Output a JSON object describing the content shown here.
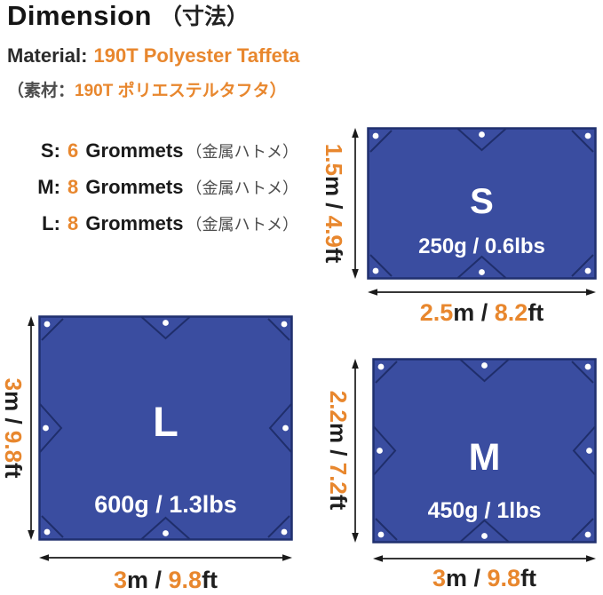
{
  "colors": {
    "orange": "#E8872E",
    "ink": "#1a1a1a",
    "gray": "#4d4d4d",
    "tarp_fill": "#3A4DA0",
    "tarp_border": "#20306F",
    "seam": "#1F2E6B",
    "grommet": "#ffffff"
  },
  "header": {
    "title_en": "Dimension",
    "title_jp": "（寸法）",
    "material_label": "Material:",
    "material_value": "190T Polyester Taffeta",
    "material_jp_prefix": "（素材：",
    "material_jp_value": "190T ポリエステルタフタ）"
  },
  "grommets": [
    {
      "size": "S:",
      "count": "6",
      "label": "Grommets",
      "jp": "（金属ハトメ）"
    },
    {
      "size": "M:",
      "count": "8",
      "label": "Grommets",
      "jp": "（金属ハトメ）"
    },
    {
      "size": "L:",
      "count": "8",
      "label": "Grommets",
      "jp": "（金属ハトメ）"
    }
  ],
  "tarps": {
    "s": {
      "letter": "S",
      "weight": "250g / 0.6lbs",
      "grommet_count": 6,
      "edge_grommets": [
        "top",
        "bottom"
      ],
      "height": {
        "v1": "1.5",
        "u1": "m",
        "sep": " / ",
        "v2": "4.9",
        "u2": "ft"
      },
      "width": {
        "v1": "2.5",
        "u1": "m",
        "sep": " / ",
        "v2": "8.2",
        "u2": "ft"
      }
    },
    "l": {
      "letter": "L",
      "weight": "600g / 1.3lbs",
      "grommet_count": 8,
      "edge_grommets": [
        "top",
        "bottom",
        "left",
        "right"
      ],
      "height": {
        "v1": "3",
        "u1": "m",
        "sep": " / ",
        "v2": "9.8",
        "u2": "ft"
      },
      "width": {
        "v1": "3",
        "u1": "m",
        "sep": " / ",
        "v2": "9.8",
        "u2": "ft"
      }
    },
    "m": {
      "letter": "M",
      "weight": "450g / 1lbs",
      "grommet_count": 8,
      "edge_grommets": [
        "top",
        "bottom",
        "left",
        "right"
      ],
      "height": {
        "v1": "2.2",
        "u1": "m",
        "sep": " / ",
        "v2": "7.2",
        "u2": "ft"
      },
      "width": {
        "v1": "3",
        "u1": "m",
        "sep": " / ",
        "v2": "9.8",
        "u2": "ft"
      }
    }
  }
}
